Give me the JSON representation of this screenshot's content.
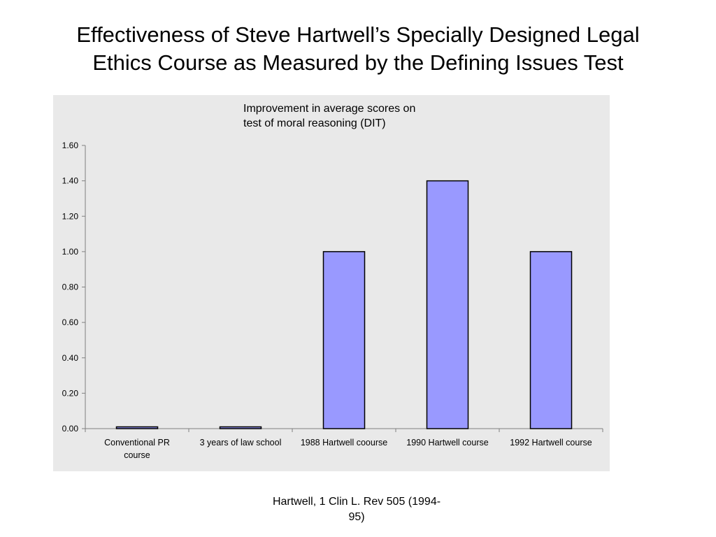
{
  "slide": {
    "title_lines": [
      "Effectiveness of Steve Hartwell’s Specially Designed Legal",
      "Ethics Course as Measured by the Defining Issues Test"
    ],
    "caption_lines": [
      "Hartwell, 1 Clin L. Rev 505 (1994-",
      "95)"
    ]
  },
  "colors": {
    "chart_background": "#e9e9e9",
    "bar_fill": "#9999ff",
    "bar_stroke": "#000000",
    "axis": "#808080"
  },
  "chart_data": {
    "type": "bar",
    "title_lines": [
      "Improvement in average scores on",
      "test of moral reasoning (DIT)"
    ],
    "categories": [
      [
        "Conventional PR",
        "course"
      ],
      [
        "3 years of law school"
      ],
      [
        "1988 Hartwell coourse"
      ],
      [
        "1990 Hartwell course"
      ],
      [
        "1992 Hartwell course"
      ]
    ],
    "values": [
      0.01,
      0.01,
      1.0,
      1.4,
      1.0
    ],
    "ylim": [
      0,
      1.6
    ],
    "yticks": [
      "0.00",
      "0.20",
      "0.40",
      "0.60",
      "0.80",
      "1.00",
      "1.20",
      "1.40",
      "1.60"
    ],
    "xlabel": "",
    "ylabel": "",
    "legend": "none",
    "grid": false
  }
}
